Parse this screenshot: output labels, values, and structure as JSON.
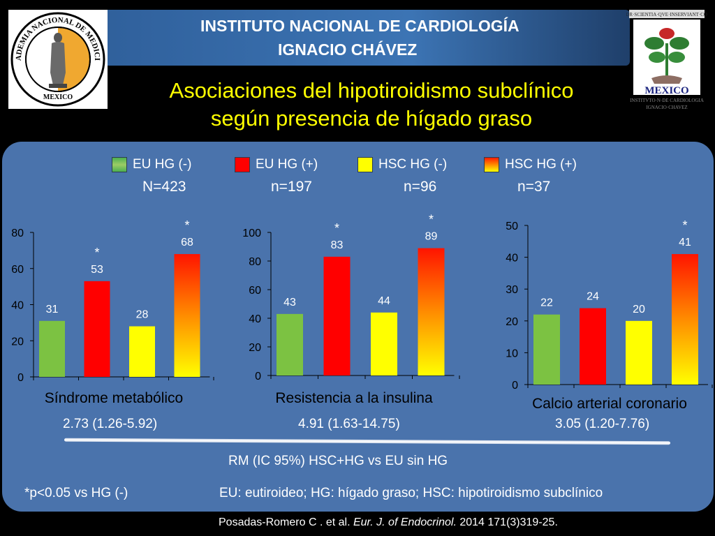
{
  "header": {
    "institute_line1": "INSTITUTO NACIONAL DE CARDIOLOGÍA",
    "institute_line2": "IGNACIO CHÁVEZ",
    "title_line1": "Asociaciones del hipotiroidismo subclínico",
    "title_line2": "según presencia de hígado graso",
    "logo_left_text": "ACADEMIA NACIONAL DE MEDICINA · MEXICO",
    "logo_right_text": "AMOR·SCIENTIA·QVE·INSERVIANT·CORDI · MEXICO · INSTITVTO·N·DE CARDIOLOGIA IGNACIO·CHAVEZ"
  },
  "legend": [
    {
      "label": "EU  HG (-)",
      "n": "N=423",
      "color": "#7cc242"
    },
    {
      "label": "EU  HG (+)",
      "n": "n=197",
      "color": "#ff0000"
    },
    {
      "label": "HSC  HG (-)",
      "n": "n=96",
      "color": "#ffff00"
    },
    {
      "label": "HSC  HG (+)",
      "n": "n=37",
      "color": "gradient-red-yellow"
    }
  ],
  "chart_data": [
    {
      "type": "bar",
      "title": "Síndrome metabólico",
      "categories": [
        "EU  HG (-)",
        "EU  HG (+)",
        "HSC  HG (-)",
        "HSC  HG (+)"
      ],
      "values": [
        31,
        53,
        28,
        68
      ],
      "significant": [
        false,
        true,
        false,
        true
      ],
      "ylim": [
        0,
        80
      ],
      "yticks": [
        0,
        20,
        40,
        60,
        80
      ],
      "or_ci": "2.73 (1.26-5.92)"
    },
    {
      "type": "bar",
      "title": "Resistencia a la insulina",
      "categories": [
        "EU  HG (-)",
        "EU  HG (+)",
        "HSC  HG (-)",
        "HSC  HG (+)"
      ],
      "values": [
        43,
        83,
        44,
        89
      ],
      "significant": [
        false,
        true,
        false,
        true
      ],
      "ylim": [
        0,
        100
      ],
      "yticks": [
        0,
        20,
        40,
        60,
        80,
        100
      ],
      "or_ci": "4.91 (1.63-14.75)"
    },
    {
      "type": "bar",
      "title": "Calcio arterial coronario",
      "categories": [
        "EU  HG (-)",
        "EU  HG (+)",
        "HSC  HG (-)",
        "HSC  HG (+)"
      ],
      "values": [
        22,
        24,
        20,
        41
      ],
      "significant": [
        false,
        false,
        false,
        true
      ],
      "ylim": [
        0,
        50
      ],
      "yticks": [
        0,
        10,
        20,
        30,
        40,
        50
      ],
      "or_ci": "3.05 (1.20-7.76)"
    }
  ],
  "significance_marker": "*",
  "footer": {
    "rm_label": "RM (IC 95%) HSC+HG vs EU sin HG",
    "pvalue_note": "*p<0.05 vs  HG (-)",
    "abbreviations": "EU: eutiroideo;  HG: hígado graso;  HSC: hipotiroidismo subclínico",
    "ref_authors": "Posadas-Romero C . et al. ",
    "ref_journal": "Eur. J. of Endocrinol.",
    "ref_rest": " 2014  171(3)319-25."
  }
}
